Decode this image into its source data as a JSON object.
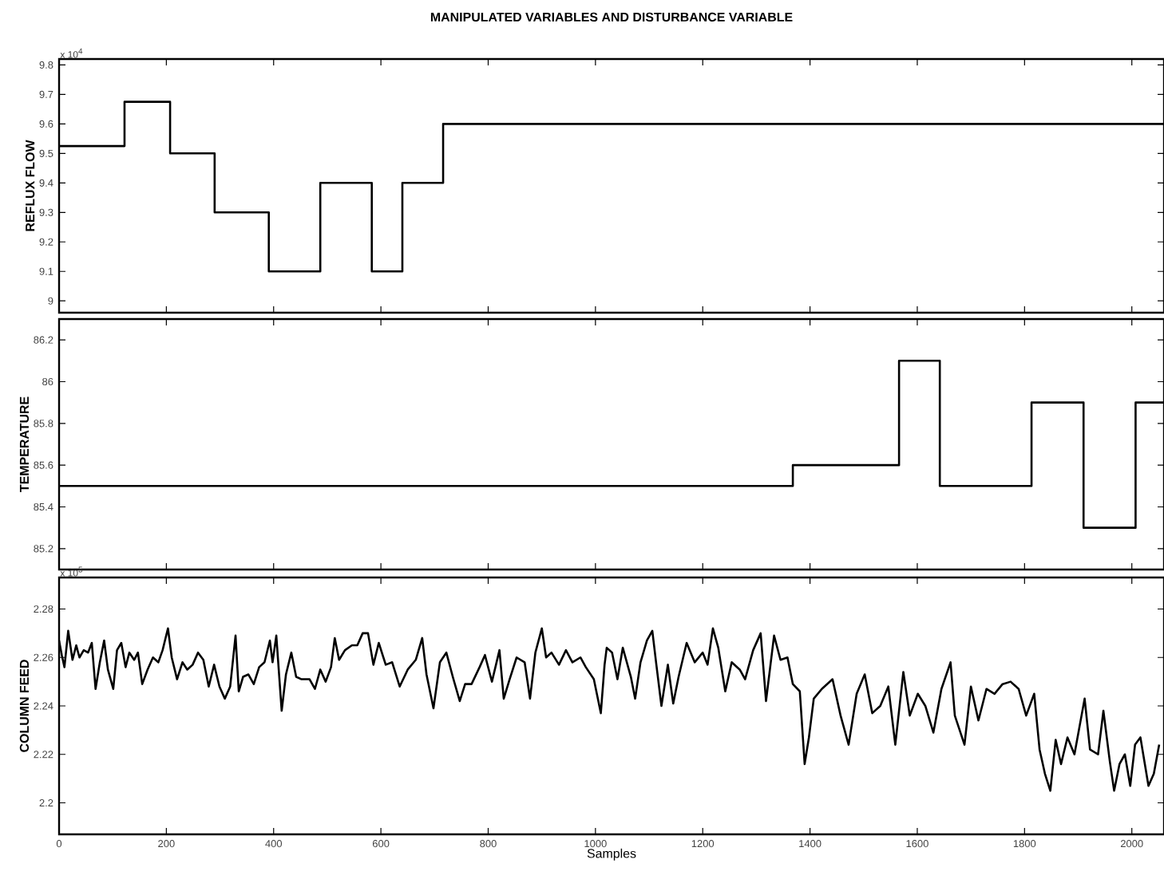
{
  "chart_data": [
    {
      "type": "step",
      "title": "MANIPULATED VARIABLES AND DISTURBANCE VARIABLE",
      "ylabel": "REFLUX FLOW",
      "annotations": [
        "x 10$^{4}$"
      ],
      "color": "#000000",
      "x": [
        0,
        122,
        207,
        290,
        391,
        487,
        583,
        640,
        716,
        2060
      ],
      "values": [
        9.525,
        9.675,
        9.5,
        9.3,
        9.1,
        9.4,
        9.1,
        9.4,
        9.6,
        9.6
      ],
      "xlim": [
        0,
        2060
      ],
      "ylim": [
        8.96,
        9.82
      ],
      "xticks": [
        0,
        200,
        400,
        600,
        800,
        1000,
        1200,
        1400,
        1600,
        1800,
        2000
      ],
      "yticks": [
        9,
        9.1,
        9.2,
        9.3,
        9.4,
        9.5,
        9.6,
        9.7,
        9.8
      ],
      "tick_labels": "y"
    },
    {
      "type": "step",
      "ylabel": "TEMPERATURE",
      "color": "#000000",
      "x": [
        0,
        1368,
        1566,
        1642,
        1813,
        1910,
        2007,
        2060
      ],
      "values": [
        85.5,
        85.6,
        86.1,
        85.5,
        85.9,
        85.3,
        85.9,
        85.9
      ],
      "xlim": [
        0,
        2060
      ],
      "ylim": [
        85.1,
        86.3
      ],
      "xticks": [
        0,
        200,
        400,
        600,
        800,
        1000,
        1200,
        1400,
        1600,
        1800,
        2000
      ],
      "yticks": [
        85.2,
        85.4,
        85.6,
        85.8,
        86,
        86.2
      ],
      "tick_labels": "y"
    },
    {
      "type": "line",
      "xlabel": "Samples",
      "ylabel": "COLUMN FEED",
      "annotations": [
        "x 10$^{5}$"
      ],
      "color": "#000000",
      "x": [
        0,
        5,
        10,
        17,
        25,
        32,
        38,
        46,
        54,
        61,
        68,
        76,
        84,
        91,
        101,
        108,
        116,
        124,
        131,
        140,
        147,
        155,
        165,
        175,
        185,
        193,
        203,
        210,
        220,
        230,
        239,
        249,
        259,
        269,
        279,
        289,
        299,
        309,
        319,
        329,
        335,
        343,
        353,
        363,
        373,
        383,
        393,
        398,
        405,
        415,
        423,
        433,
        442,
        452,
        467,
        477,
        487,
        497,
        507,
        514,
        522,
        533,
        546,
        556,
        566,
        576,
        586,
        596,
        609,
        621,
        635,
        650,
        665,
        677,
        685,
        698,
        710,
        722,
        734,
        747,
        757,
        769,
        784,
        794,
        807,
        821,
        829,
        840,
        853,
        868,
        878,
        888,
        900,
        908,
        918,
        932,
        945,
        957,
        972,
        982,
        997,
        1010,
        1017,
        1021,
        1031,
        1041,
        1051,
        1066,
        1074,
        1084,
        1096,
        1106,
        1113,
        1123,
        1135,
        1145,
        1155,
        1170,
        1185,
        1200,
        1209,
        1219,
        1229,
        1242,
        1254,
        1269,
        1279,
        1294,
        1308,
        1318,
        1333,
        1345,
        1358,
        1368,
        1381,
        1390,
        1398,
        1407,
        1422,
        1442,
        1457,
        1472,
        1487,
        1502,
        1516,
        1531,
        1546,
        1559,
        1574,
        1586,
        1601,
        1615,
        1630,
        1645,
        1662,
        1670,
        1688,
        1700,
        1714,
        1729,
        1744,
        1759,
        1774,
        1789,
        1803,
        1818,
        1828,
        1838,
        1848,
        1858,
        1868,
        1880,
        1893,
        1912,
        1922,
        1937,
        1947,
        1959,
        1967,
        1977,
        1987,
        1997,
        2006,
        2016,
        2031,
        2041,
        2051
      ],
      "values": [
        2.267,
        2.261,
        2.256,
        2.271,
        2.259,
        2.265,
        2.26,
        2.263,
        2.262,
        2.266,
        2.247,
        2.258,
        2.267,
        2.255,
        2.247,
        2.263,
        2.266,
        2.256,
        2.262,
        2.259,
        2.262,
        2.249,
        2.255,
        2.26,
        2.258,
        2.263,
        2.272,
        2.26,
        2.251,
        2.258,
        2.255,
        2.257,
        2.262,
        2.259,
        2.248,
        2.257,
        2.248,
        2.243,
        2.248,
        2.269,
        2.246,
        2.252,
        2.253,
        2.249,
        2.256,
        2.258,
        2.267,
        2.258,
        2.269,
        2.238,
        2.253,
        2.262,
        2.252,
        2.251,
        2.251,
        2.247,
        2.255,
        2.25,
        2.256,
        2.268,
        2.259,
        2.263,
        2.265,
        2.265,
        2.27,
        2.27,
        2.257,
        2.266,
        2.257,
        2.258,
        2.248,
        2.255,
        2.259,
        2.268,
        2.253,
        2.239,
        2.258,
        2.262,
        2.252,
        2.242,
        2.249,
        2.249,
        2.256,
        2.261,
        2.25,
        2.263,
        2.243,
        2.251,
        2.26,
        2.258,
        2.243,
        2.262,
        2.272,
        2.26,
        2.262,
        2.257,
        2.263,
        2.258,
        2.26,
        2.256,
        2.251,
        2.237,
        2.257,
        2.264,
        2.262,
        2.251,
        2.264,
        2.252,
        2.243,
        2.258,
        2.267,
        2.271,
        2.258,
        2.24,
        2.257,
        2.241,
        2.252,
        2.266,
        2.258,
        2.262,
        2.257,
        2.272,
        2.264,
        2.246,
        2.258,
        2.255,
        2.251,
        2.263,
        2.27,
        2.242,
        2.269,
        2.259,
        2.26,
        2.249,
        2.246,
        2.216,
        2.227,
        2.243,
        2.247,
        2.251,
        2.236,
        2.224,
        2.245,
        2.253,
        2.237,
        2.24,
        2.248,
        2.224,
        2.254,
        2.236,
        2.245,
        2.24,
        2.229,
        2.247,
        2.258,
        2.236,
        2.224,
        2.248,
        2.234,
        2.247,
        2.245,
        2.249,
        2.25,
        2.247,
        2.236,
        2.245,
        2.222,
        2.212,
        2.205,
        2.226,
        2.216,
        2.227,
        2.22,
        2.243,
        2.222,
        2.22,
        2.238,
        2.217,
        2.205,
        2.216,
        2.22,
        2.207,
        2.224,
        2.227,
        2.207,
        2.212,
        2.224
      ],
      "xlim": [
        0,
        2060
      ],
      "ylim": [
        2.187,
        2.293
      ],
      "xticks": [
        0,
        200,
        400,
        600,
        800,
        1000,
        1200,
        1400,
        1600,
        1800,
        2000
      ],
      "yticks": [
        2.2,
        2.22,
        2.24,
        2.26,
        2.28
      ]
    }
  ]
}
